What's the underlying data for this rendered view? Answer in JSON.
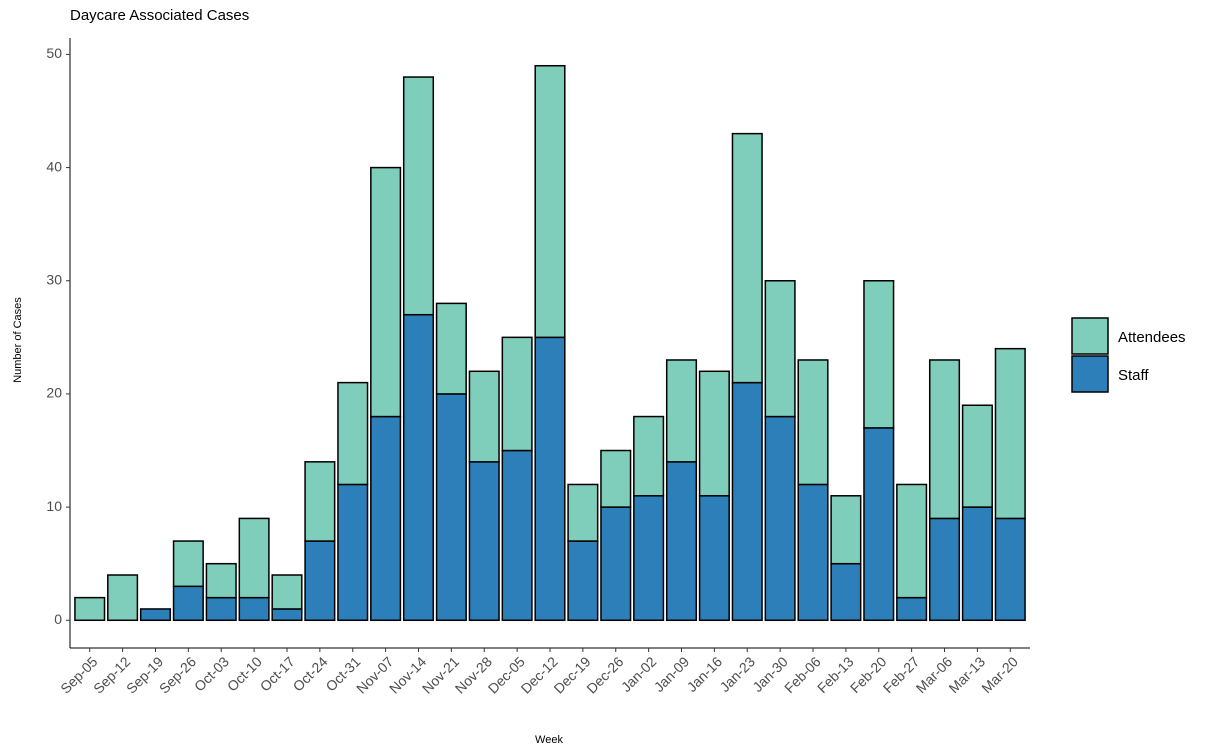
{
  "chart_data": {
    "type": "stacked_bar",
    "title": "Daycare Associated Cases",
    "x_label": "Week",
    "y_label": "Number of Cases",
    "categories": [
      "Sep-05",
      "Sep-12",
      "Sep-19",
      "Sep-26",
      "Oct-03",
      "Oct-10",
      "Oct-17",
      "Oct-24",
      "Oct-31",
      "Nov-07",
      "Nov-14",
      "Nov-21",
      "Nov-28",
      "Dec-05",
      "Dec-12",
      "Dec-19",
      "Dec-26",
      "Jan-02",
      "Jan-09",
      "Jan-16",
      "Jan-23",
      "Jan-30",
      "Feb-06",
      "Feb-13",
      "Feb-20",
      "Feb-27",
      "Mar-06",
      "Mar-13",
      "Mar-20"
    ],
    "series": [
      {
        "name": "Attendees",
        "color": "#7fcdbb",
        "values": [
          2,
          4,
          0,
          4,
          3,
          7,
          3,
          7,
          9,
          22,
          21,
          8,
          8,
          10,
          24,
          5,
          5,
          7,
          9,
          11,
          22,
          12,
          11,
          6,
          13,
          10,
          14,
          9,
          15
        ]
      },
      {
        "name": "Staff",
        "color": "#2c7fb8",
        "values": [
          0,
          0,
          1,
          3,
          2,
          2,
          1,
          7,
          12,
          18,
          27,
          20,
          14,
          15,
          25,
          7,
          10,
          11,
          14,
          11,
          21,
          18,
          12,
          5,
          17,
          2,
          9,
          10,
          9
        ]
      }
    ],
    "ylim": [
      -2.45,
      51.45
    ],
    "yticks": [
      0,
      10,
      20,
      30,
      40,
      50
    ],
    "grid": false,
    "legend": "right"
  }
}
